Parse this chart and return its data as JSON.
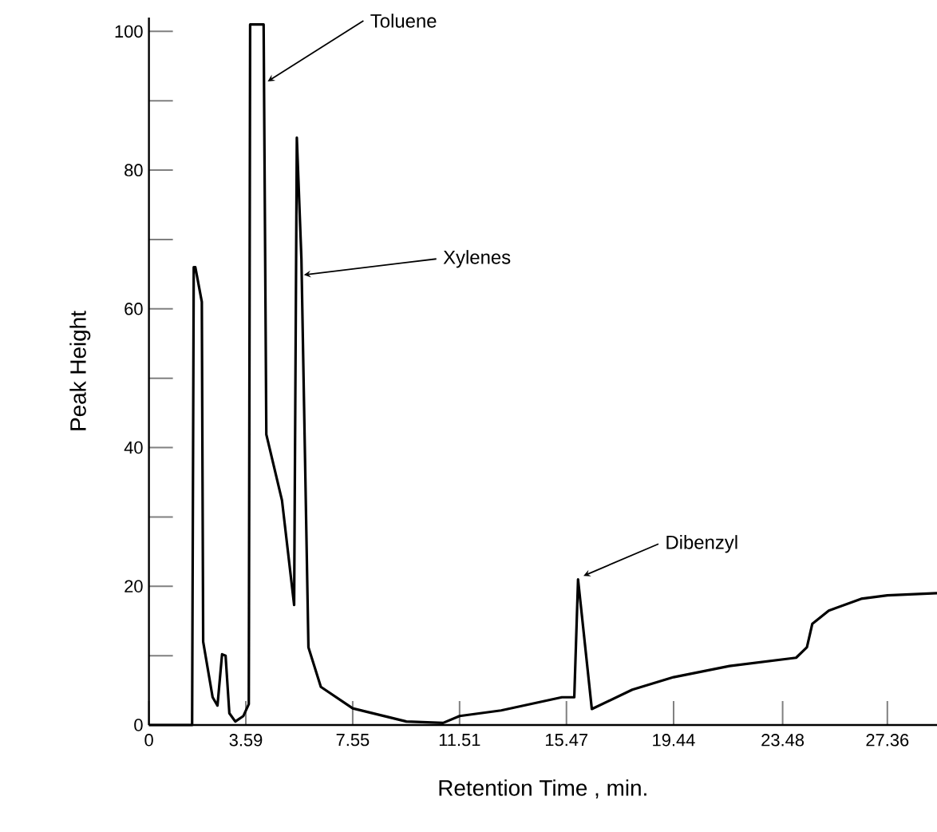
{
  "chart_data": {
    "type": "line",
    "xlabel": "Retention Time ,  min.",
    "ylabel": "Peak Height",
    "x": [
      0,
      1.6,
      1.66,
      1.72,
      1.96,
      2.01,
      2.36,
      2.54,
      2.71,
      2.84,
      2.98,
      3.2,
      3.5,
      3.7,
      3.75,
      4.25,
      4.35,
      4.93,
      5.38,
      5.48,
      5.65,
      5.91,
      6.37,
      7.55,
      9.54,
      10.9,
      11.51,
      13.05,
      15.3,
      15.76,
      15.9,
      16.41,
      17.91,
      19.44,
      21.51,
      23.98,
      24.38,
      24.58,
      25.19,
      26.39,
      27.36,
      29.2
    ],
    "values": [
      0,
      0,
      66,
      66,
      61,
      12,
      4,
      2.8,
      10.2,
      10,
      1.7,
      0.5,
      1.3,
      3,
      101,
      101,
      41.9,
      32.4,
      17.3,
      84.7,
      67.2,
      11.2,
      5.5,
      2.4,
      0.5,
      0.3,
      1.3,
      2.1,
      4,
      4,
      21,
      2.3,
      5.1,
      6.9,
      8.5,
      9.7,
      11.2,
      14.6,
      16.5,
      18.2,
      18.7,
      19
    ],
    "color": "#000000",
    "line_style": "solid",
    "marker": "none",
    "xlim": [
      0,
      29.2
    ],
    "ylim": [
      0,
      102
    ],
    "xticks": [
      0,
      3.59,
      7.55,
      11.51,
      15.47,
      19.44,
      23.48,
      27.36
    ],
    "yticks": [
      0,
      {
        "value": 10,
        "label": null
      },
      20,
      {
        "value": 30,
        "label": null
      },
      40,
      {
        "value": 50,
        "label": null
      },
      60,
      {
        "value": 70,
        "label": null
      },
      80,
      {
        "value": 90,
        "label": null
      },
      100
    ],
    "annotations": [
      {
        "text": "Toluene",
        "x": 4.4,
        "y": 92.8
      },
      {
        "text": "Xylenes",
        "x": 5.74,
        "y": 64.9
      },
      {
        "text": "Dibenzyl",
        "x": 16.1,
        "y": 21.5
      }
    ],
    "grid": false
  }
}
